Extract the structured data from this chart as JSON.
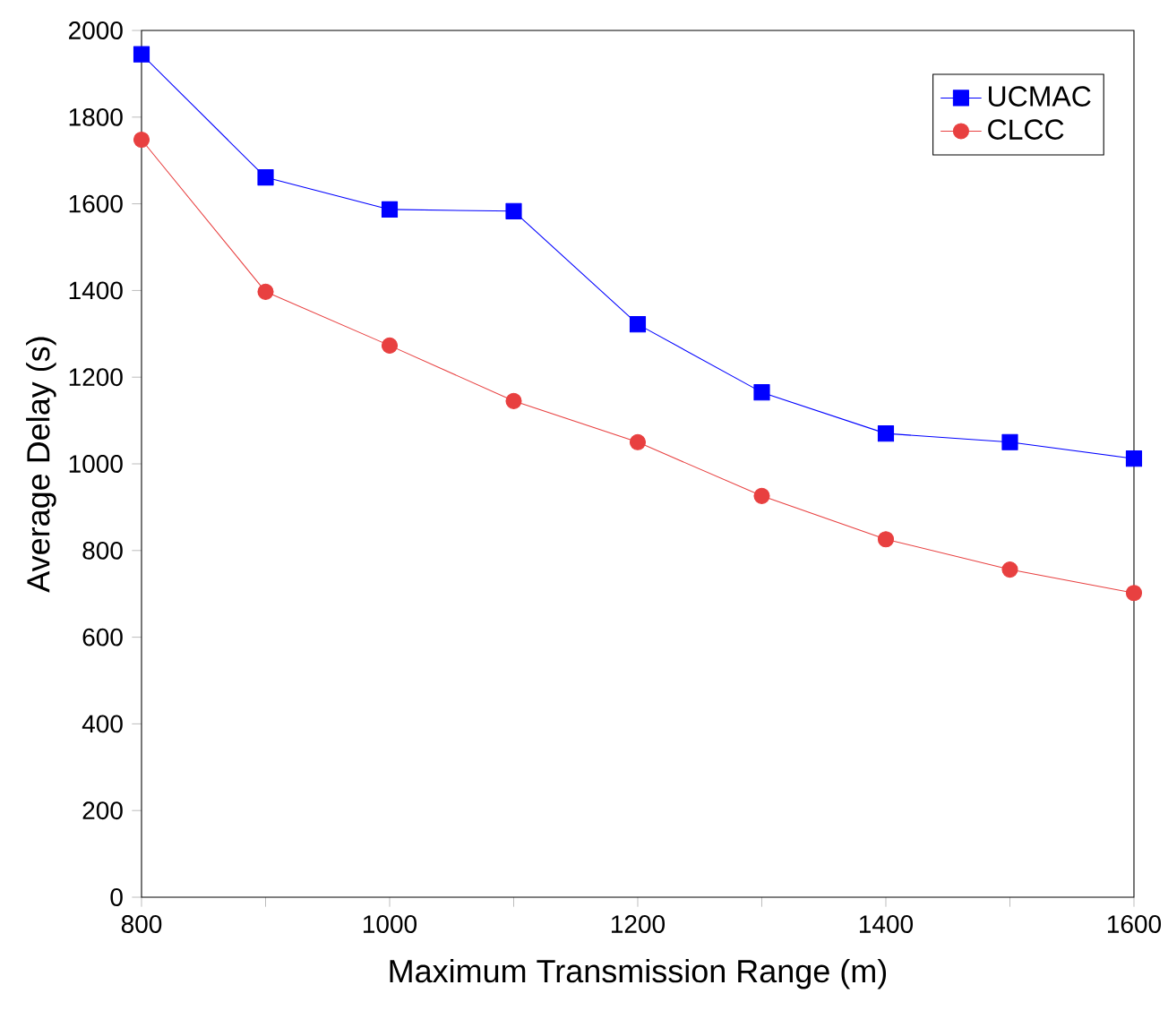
{
  "chart_data": {
    "type": "line",
    "xlabel": "Maximum Transmission Range (m)",
    "ylabel": "Average Delay (s)",
    "x": [
      800,
      900,
      1000,
      1100,
      1200,
      1300,
      1400,
      1500,
      1600
    ],
    "series": [
      {
        "name": "UCMAC",
        "color": "#0000ff",
        "marker": "square",
        "values": [
          1945,
          1661,
          1587,
          1583,
          1322,
          1165,
          1070,
          1050,
          1012
        ]
      },
      {
        "name": "CLCC",
        "color": "#e84040",
        "marker": "circle",
        "values": [
          1748,
          1397,
          1273,
          1145,
          1050,
          926,
          826,
          756,
          702
        ]
      }
    ],
    "xlim": [
      800,
      1600
    ],
    "xticks": [
      800,
      {
        "value": 900,
        "label": null
      },
      1000,
      {
        "value": 1100,
        "label": null
      },
      1200,
      {
        "value": 1300,
        "label": null
      },
      1400,
      {
        "value": 1500,
        "label": null
      },
      1600
    ],
    "ylim": [
      0,
      2000
    ],
    "yticks": [
      0,
      200,
      400,
      600,
      800,
      1000,
      1200,
      1400,
      1600,
      1800,
      2000
    ],
    "grid": false,
    "legend": "top right",
    "line_style": "solid"
  }
}
